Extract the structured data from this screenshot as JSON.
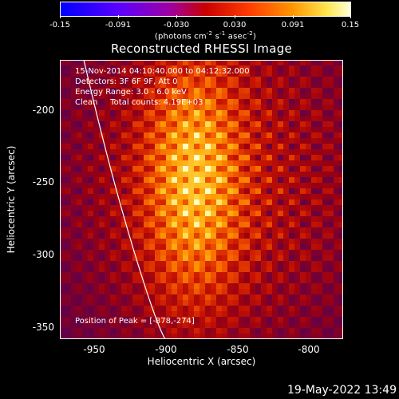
{
  "colorbar": {
    "min": -0.15,
    "max": 0.15,
    "tick_labels": [
      "-0.15",
      "-0.091",
      "-0.030",
      "0.030",
      "0.091",
      "0.15"
    ],
    "units_prefix": "(photons cm",
    "units_exp1": "-2",
    "units_mid1": " s",
    "units_exp2": "-1",
    "units_mid2": " asec",
    "units_exp3": "-2",
    "units_suffix": ")"
  },
  "title": "Reconstructed RHESSI Image",
  "annotations": {
    "time_range": "15-Nov-2014 04:10:40.000 to 04:12:32.000",
    "detectors": "Detectors: 3F 6F 9F, Att 0",
    "energy_range": "Energy Range: 3.0 - 6.0 keV",
    "method_counts": "Clean     Total counts: 4.19E+03",
    "peak_position": "Position of Peak = [-878,-274]"
  },
  "axes": {
    "xlabel": "Heliocentric X (arcsec)",
    "ylabel": "Heliocentric Y (arcsec)",
    "xlim": [
      -973,
      -777
    ],
    "ylim": [
      -358,
      -162
    ],
    "xticks": [
      "-950",
      "-900",
      "-850",
      "-800"
    ],
    "yticks": [
      "-200",
      "-250",
      "-300",
      "-350"
    ]
  },
  "limb_color": "#ffffff",
  "timestamp": "19-May-2022 13:49"
}
